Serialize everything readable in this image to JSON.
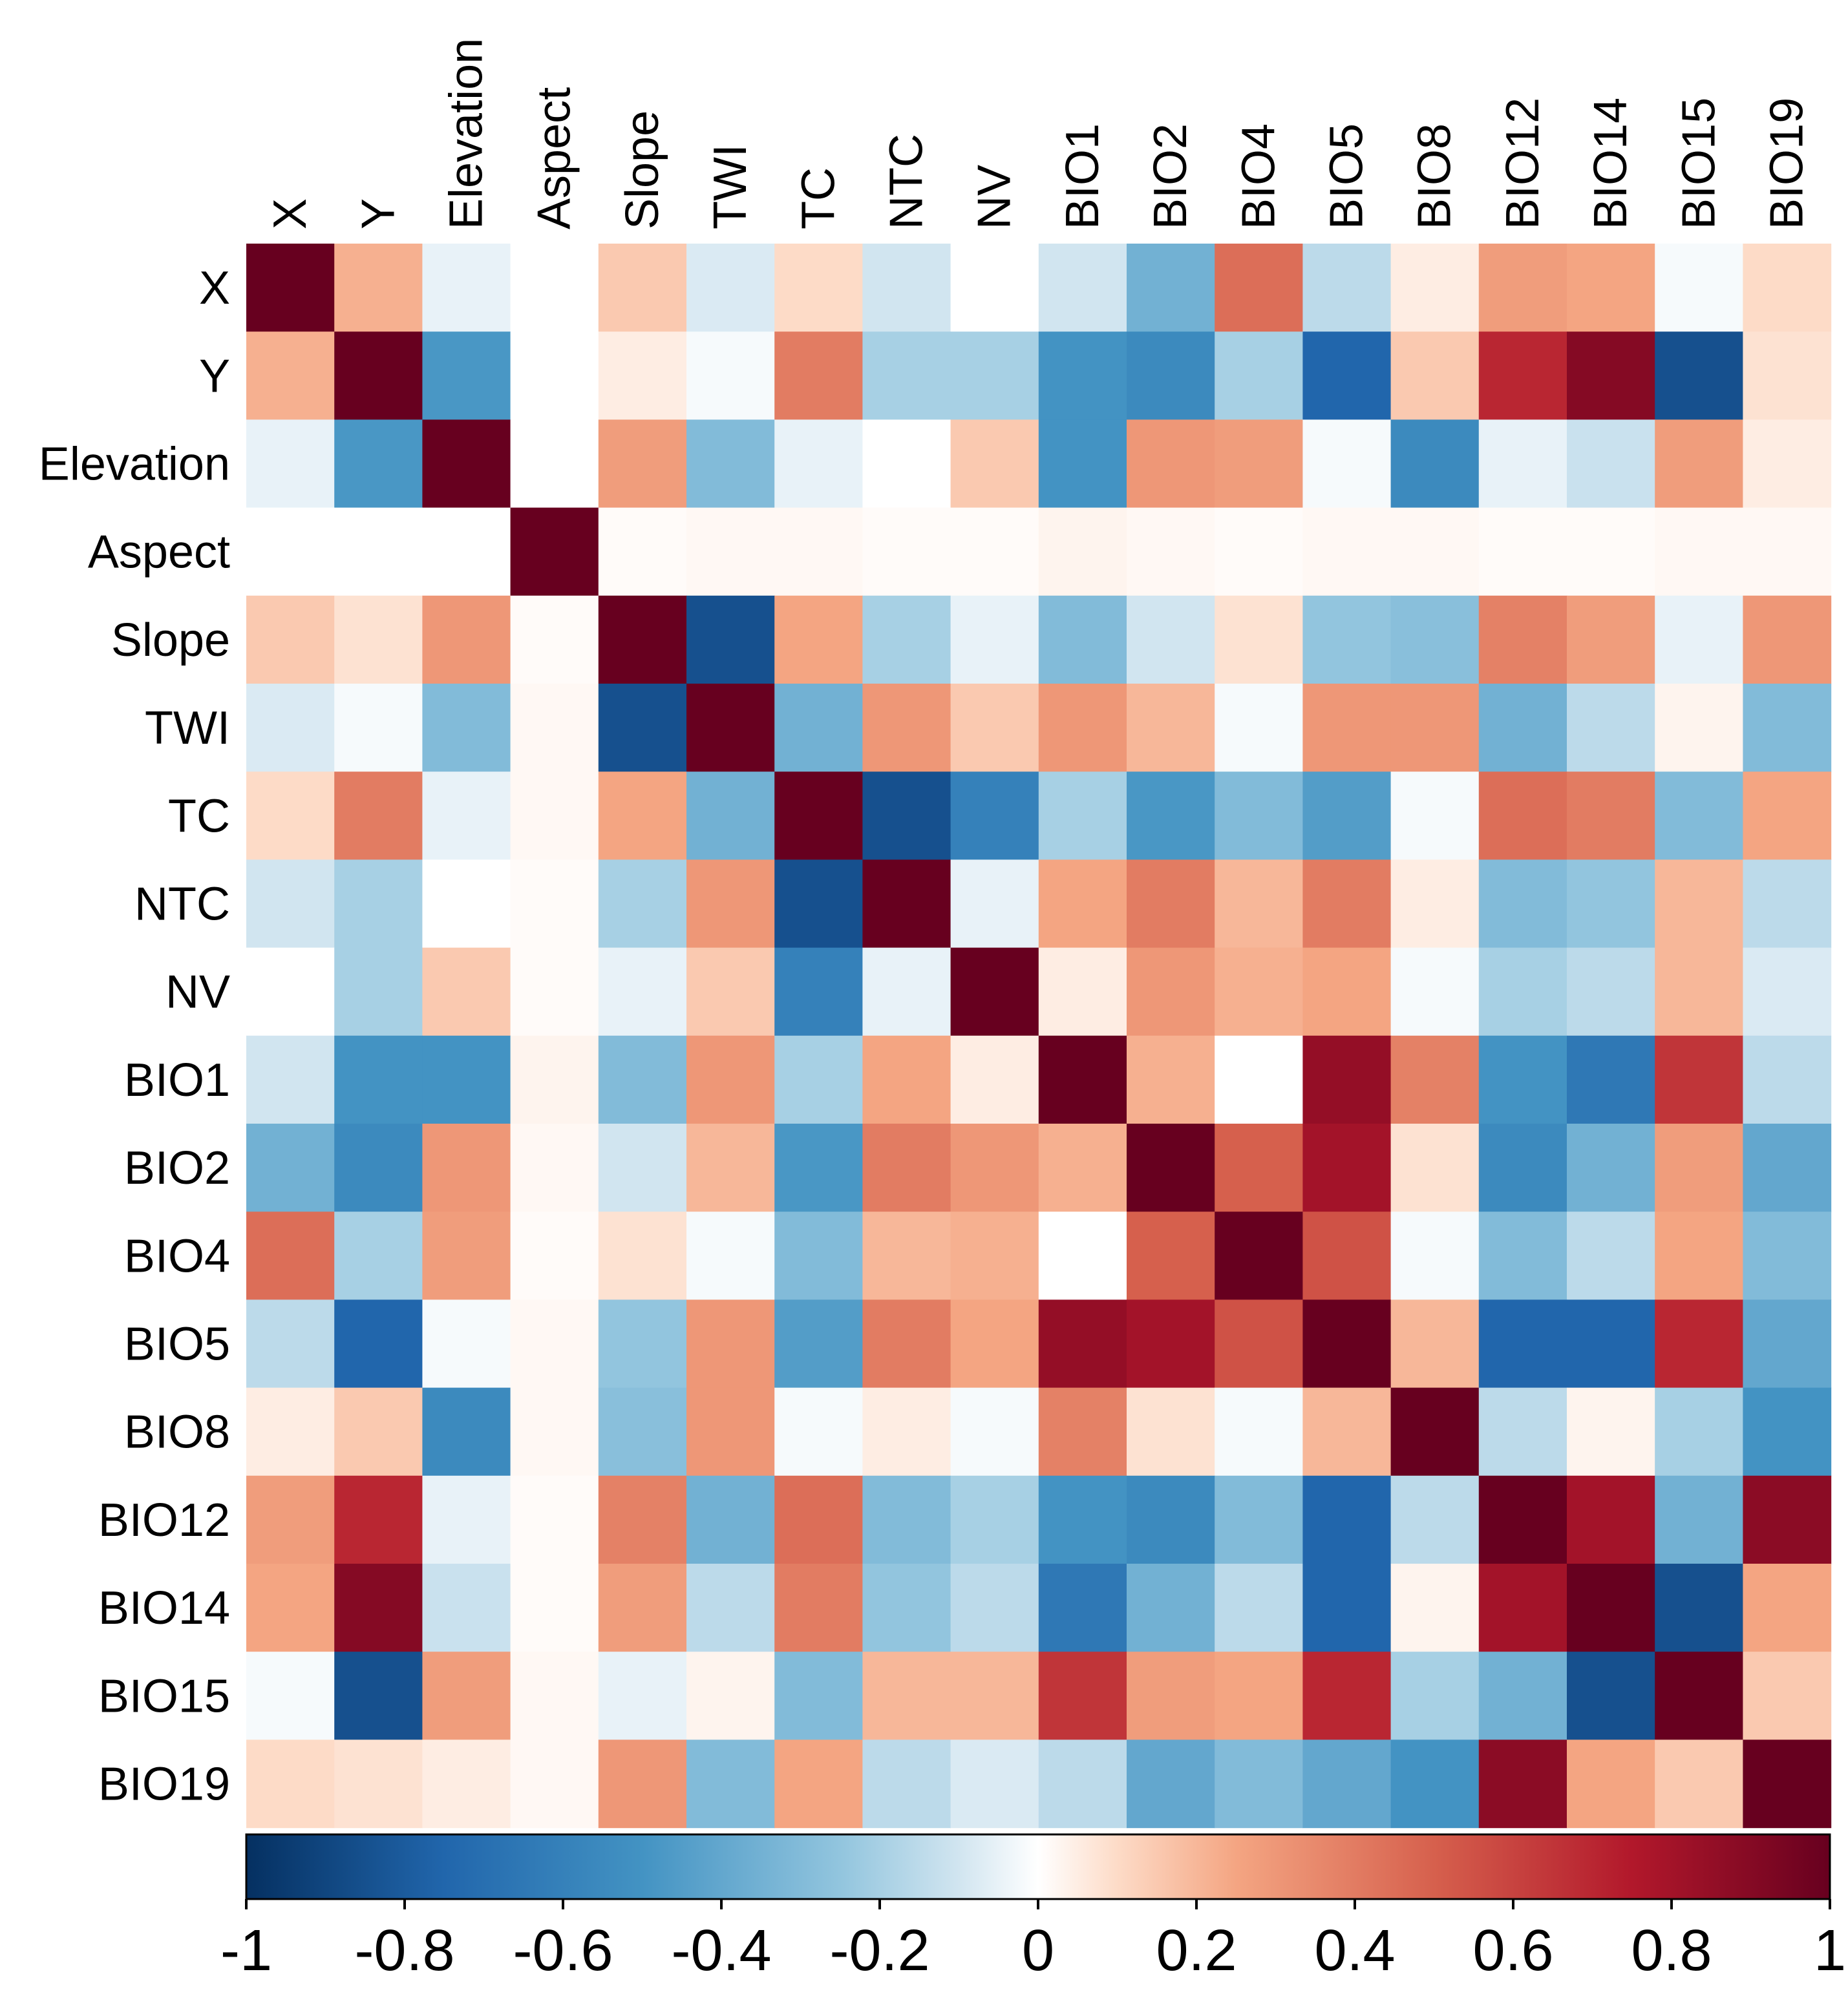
{
  "chart_data": {
    "type": "heatmap",
    "title": "",
    "variables": [
      "X",
      "Y",
      "Elevation",
      "Aspect",
      "Slope",
      "TWI",
      "TC",
      "NTC",
      "NV",
      "BIO1",
      "BIO2",
      "BIO4",
      "BIO5",
      "BIO8",
      "BIO12",
      "BIO14",
      "BIO15",
      "BIO19"
    ],
    "matrix": [
      [
        1.0,
        0.22,
        -0.05,
        0.0,
        0.15,
        -0.08,
        0.1,
        -0.1,
        0.0,
        -0.1,
        -0.35,
        0.45,
        -0.15,
        0.05,
        0.28,
        0.25,
        -0.02,
        0.1
      ],
      [
        0.22,
        1.0,
        -0.48,
        0.0,
        0.05,
        -0.02,
        0.4,
        -0.2,
        -0.2,
        -0.5,
        -0.55,
        -0.2,
        -0.75,
        0.15,
        0.7,
        0.9,
        -0.85,
        0.08
      ],
      [
        -0.05,
        -0.48,
        1.0,
        0.0,
        0.28,
        -0.3,
        -0.05,
        0.0,
        0.15,
        -0.5,
        0.3,
        0.28,
        -0.02,
        -0.55,
        -0.05,
        -0.12,
        0.28,
        0.05
      ],
      [
        0.0,
        0.0,
        0.0,
        1.0,
        0.01,
        0.02,
        0.02,
        0.01,
        0.01,
        0.03,
        0.02,
        0.01,
        0.02,
        0.02,
        0.01,
        0.01,
        0.02,
        0.02
      ],
      [
        0.15,
        0.08,
        0.3,
        0.01,
        1.0,
        -0.85,
        0.25,
        -0.2,
        -0.05,
        -0.3,
        -0.1,
        0.08,
        -0.25,
        -0.28,
        0.38,
        0.28,
        -0.05,
        0.3
      ],
      [
        -0.08,
        -0.02,
        -0.3,
        0.02,
        -0.85,
        1.0,
        -0.35,
        0.3,
        0.15,
        0.3,
        0.2,
        -0.02,
        0.3,
        0.3,
        -0.35,
        -0.15,
        0.03,
        -0.3
      ],
      [
        0.1,
        0.4,
        -0.05,
        0.02,
        0.25,
        -0.35,
        1.0,
        -0.85,
        -0.6,
        -0.2,
        -0.48,
        -0.3,
        -0.45,
        -0.02,
        0.45,
        0.4,
        -0.3,
        0.25
      ],
      [
        -0.1,
        -0.2,
        0.0,
        0.01,
        -0.2,
        0.3,
        -0.85,
        1.0,
        -0.05,
        0.25,
        0.4,
        0.2,
        0.4,
        0.05,
        -0.3,
        -0.25,
        0.2,
        -0.15
      ],
      [
        0.0,
        -0.2,
        0.15,
        0.01,
        -0.05,
        0.15,
        -0.6,
        -0.05,
        1.0,
        0.05,
        0.3,
        0.22,
        0.25,
        -0.02,
        -0.2,
        -0.15,
        0.2,
        -0.08
      ],
      [
        -0.1,
        -0.5,
        -0.5,
        0.03,
        -0.3,
        0.3,
        -0.2,
        0.25,
        0.05,
        1.0,
        0.22,
        0.0,
        0.85,
        0.38,
        -0.5,
        -0.65,
        0.65,
        -0.15
      ],
      [
        -0.35,
        -0.55,
        0.3,
        0.02,
        -0.1,
        0.2,
        -0.48,
        0.4,
        0.3,
        0.22,
        1.0,
        0.5,
        0.8,
        0.08,
        -0.55,
        -0.35,
        0.28,
        -0.4
      ],
      [
        0.45,
        -0.2,
        0.28,
        0.01,
        0.08,
        -0.02,
        -0.3,
        0.2,
        0.22,
        0.0,
        0.5,
        1.0,
        0.55,
        -0.02,
        -0.3,
        -0.15,
        0.25,
        -0.3
      ],
      [
        -0.15,
        -0.75,
        -0.02,
        0.02,
        -0.25,
        0.3,
        -0.45,
        0.4,
        0.25,
        0.85,
        0.8,
        0.55,
        1.0,
        0.2,
        -0.75,
        -0.75,
        0.7,
        -0.4
      ],
      [
        0.05,
        0.15,
        -0.55,
        0.02,
        -0.28,
        0.3,
        -0.02,
        0.05,
        -0.02,
        0.38,
        0.08,
        -0.02,
        0.2,
        1.0,
        -0.15,
        0.03,
        -0.2,
        -0.5
      ],
      [
        0.28,
        0.7,
        -0.05,
        0.01,
        0.38,
        -0.35,
        0.45,
        -0.3,
        -0.2,
        -0.5,
        -0.55,
        -0.3,
        -0.75,
        -0.15,
        1.0,
        0.8,
        -0.35,
        0.88
      ],
      [
        0.25,
        0.9,
        -0.12,
        0.01,
        0.28,
        -0.15,
        0.4,
        -0.25,
        -0.15,
        -0.65,
        -0.35,
        -0.15,
        -0.75,
        0.03,
        0.8,
        1.0,
        -0.85,
        0.25
      ],
      [
        -0.02,
        -0.85,
        0.28,
        0.02,
        -0.05,
        0.03,
        -0.3,
        0.2,
        0.2,
        0.65,
        0.28,
        0.25,
        0.7,
        -0.2,
        -0.35,
        -0.85,
        1.0,
        0.15
      ],
      [
        0.1,
        0.08,
        0.05,
        0.02,
        0.3,
        -0.3,
        0.25,
        -0.15,
        -0.08,
        -0.15,
        -0.4,
        -0.3,
        -0.4,
        -0.5,
        0.88,
        0.25,
        0.15,
        1.0
      ]
    ],
    "colorbar": {
      "min": -1,
      "max": 1,
      "ticks": [
        -1,
        -0.8,
        -0.6,
        -0.4,
        -0.2,
        0,
        0.2,
        0.4,
        0.6,
        0.8,
        1
      ],
      "tick_labels": [
        "-1",
        "-0.8",
        "-0.6",
        "-0.4",
        "-0.2",
        "0",
        "0.2",
        "0.4",
        "0.6",
        "0.8",
        "1"
      ],
      "placement": "bottom"
    },
    "colorscale": [
      [
        -1.0,
        "#053061"
      ],
      [
        -0.75,
        "#2166AC"
      ],
      [
        -0.5,
        "#4393C3"
      ],
      [
        -0.25,
        "#92C5DE"
      ],
      [
        -0.1,
        "#D1E5F0"
      ],
      [
        0.0,
        "#FFFFFF"
      ],
      [
        0.1,
        "#FDDBC7"
      ],
      [
        0.25,
        "#F4A582"
      ],
      [
        0.5,
        "#D6604D"
      ],
      [
        0.75,
        "#B2182B"
      ],
      [
        1.0,
        "#67001F"
      ]
    ]
  }
}
